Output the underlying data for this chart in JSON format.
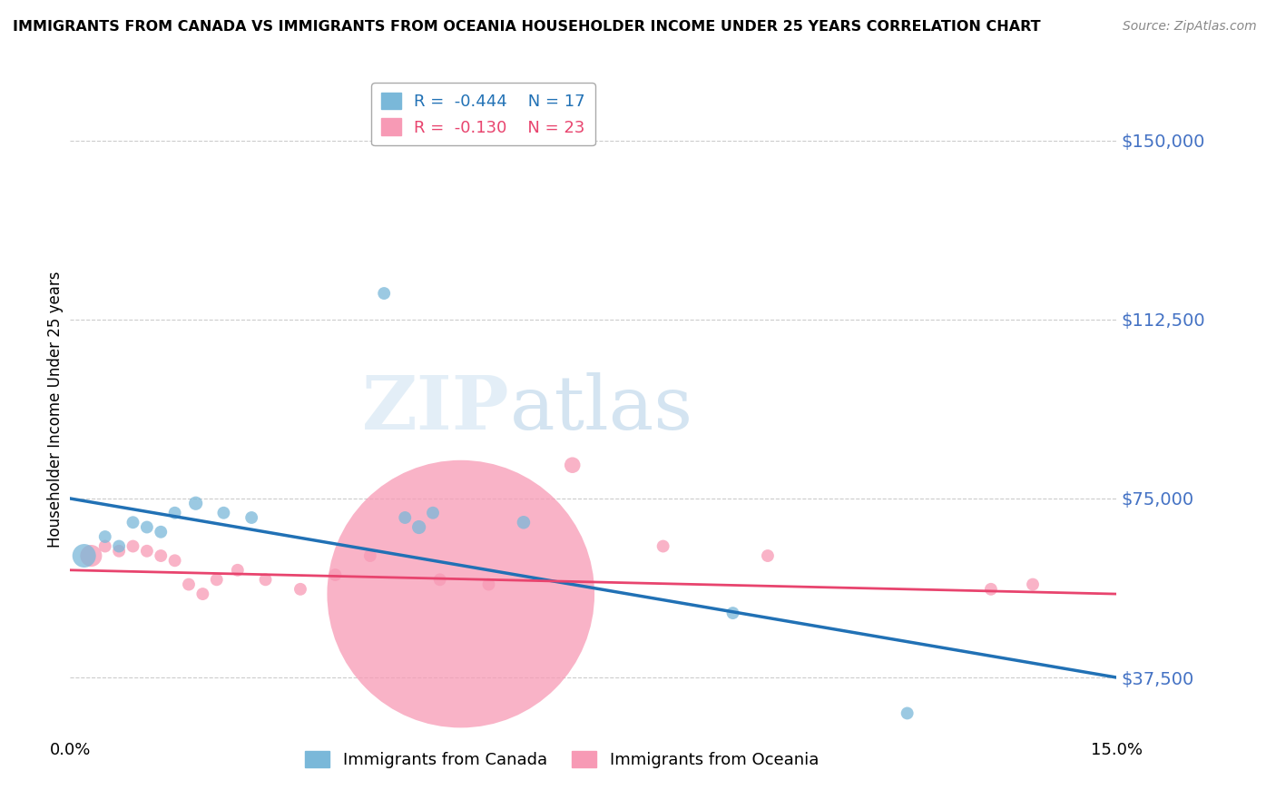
{
  "title": "IMMIGRANTS FROM CANADA VS IMMIGRANTS FROM OCEANIA HOUSEHOLDER INCOME UNDER 25 YEARS CORRELATION CHART",
  "source": "Source: ZipAtlas.com",
  "xlabel": "",
  "ylabel": "Householder Income Under 25 years",
  "xlim": [
    0.0,
    15.0
  ],
  "ylim": [
    25000,
    162500
  ],
  "yticks": [
    37500,
    75000,
    112500,
    150000
  ],
  "ytick_labels": [
    "$37,500",
    "$75,000",
    "$112,500",
    "$150,000"
  ],
  "xticks": [
    0.0,
    3.0,
    6.0,
    9.0,
    12.0,
    15.0
  ],
  "xtick_labels": [
    "0.0%",
    "",
    "",
    "",
    "",
    "15.0%"
  ],
  "canada_color": "#7ab8d9",
  "oceania_color": "#f79ab5",
  "canada_line_color": "#2171b5",
  "oceania_line_color": "#e8446e",
  "legend_R_canada": "R =  -0.444",
  "legend_N_canada": "N = 17",
  "legend_R_oceania": "R =  -0.130",
  "legend_N_oceania": "N = 23",
  "canada_x": [
    0.2,
    0.5,
    0.7,
    0.9,
    1.1,
    1.3,
    1.5,
    1.8,
    2.2,
    2.6,
    4.5,
    4.8,
    5.0,
    5.2,
    6.5,
    9.5,
    12.0
  ],
  "canada_y": [
    63000,
    67000,
    65000,
    70000,
    69000,
    68000,
    72000,
    74000,
    72000,
    71000,
    118000,
    71000,
    69000,
    72000,
    70000,
    51000,
    30000
  ],
  "canada_size": [
    350,
    100,
    100,
    100,
    100,
    100,
    100,
    120,
    100,
    100,
    100,
    100,
    120,
    100,
    110,
    100,
    100
  ],
  "oceania_x": [
    0.3,
    0.5,
    0.7,
    0.9,
    1.1,
    1.3,
    1.5,
    1.7,
    1.9,
    2.1,
    2.4,
    2.8,
    3.3,
    3.8,
    4.3,
    5.3,
    5.6,
    6.0,
    7.2,
    8.5,
    10.0,
    13.2,
    13.8
  ],
  "oceania_y": [
    63000,
    65000,
    64000,
    65000,
    64000,
    63000,
    62000,
    57000,
    55000,
    58000,
    60000,
    58000,
    56000,
    59000,
    63000,
    58000,
    55000,
    57000,
    82000,
    65000,
    63000,
    56000,
    57000
  ],
  "oceania_size": [
    300,
    100,
    100,
    100,
    100,
    100,
    100,
    100,
    100,
    100,
    100,
    100,
    100,
    100,
    100,
    100,
    45000,
    100,
    160,
    100,
    100,
    100,
    100
  ],
  "background_color": "#ffffff",
  "grid_color": "#cccccc"
}
